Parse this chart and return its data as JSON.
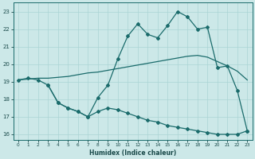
{
  "xlabel": "Humidex (Indice chaleur)",
  "background_color": "#cce8e8",
  "grid_color": "#aad4d4",
  "line_color": "#1a6b6b",
  "xlim": [
    -0.5,
    23.5
  ],
  "ylim": [
    15.7,
    23.5
  ],
  "xticks": [
    0,
    1,
    2,
    3,
    4,
    5,
    6,
    7,
    8,
    9,
    10,
    11,
    12,
    13,
    14,
    15,
    16,
    17,
    18,
    19,
    20,
    21,
    22,
    23
  ],
  "yticks": [
    16,
    17,
    18,
    19,
    20,
    21,
    22,
    23
  ],
  "line1_x": [
    0,
    1,
    2,
    3,
    4,
    5,
    6,
    7,
    8,
    9,
    10,
    11,
    12,
    13,
    14,
    15,
    16,
    17,
    18,
    19,
    20,
    21,
    22,
    23
  ],
  "line1_y": [
    19.1,
    19.15,
    19.2,
    19.2,
    19.25,
    19.3,
    19.4,
    19.5,
    19.55,
    19.65,
    19.75,
    19.85,
    19.95,
    20.05,
    20.15,
    20.25,
    20.35,
    20.45,
    20.5,
    20.4,
    20.15,
    19.9,
    19.6,
    19.1
  ],
  "line2_x": [
    0,
    1,
    2,
    3,
    4,
    5,
    6,
    7,
    8,
    9,
    10,
    11,
    12,
    13,
    14,
    15,
    16,
    17,
    18,
    19,
    20,
    21,
    22,
    23
  ],
  "line2_y": [
    19.1,
    19.2,
    19.1,
    18.8,
    17.8,
    17.5,
    17.3,
    17.0,
    18.1,
    18.8,
    20.3,
    21.6,
    22.3,
    21.7,
    21.5,
    22.2,
    23.0,
    22.7,
    22.0,
    22.1,
    19.8,
    19.9,
    18.5,
    16.2
  ],
  "line3_x": [
    3,
    4,
    5,
    6,
    7,
    8,
    9,
    10,
    11,
    12,
    13,
    14,
    15,
    16,
    17,
    18,
    19,
    20,
    21,
    22,
    23
  ],
  "line3_y": [
    18.8,
    17.8,
    17.5,
    17.3,
    17.0,
    17.3,
    17.5,
    17.4,
    17.2,
    17.0,
    16.8,
    16.7,
    16.5,
    16.4,
    16.3,
    16.2,
    16.1,
    16.0,
    16.0,
    16.0,
    16.2
  ]
}
